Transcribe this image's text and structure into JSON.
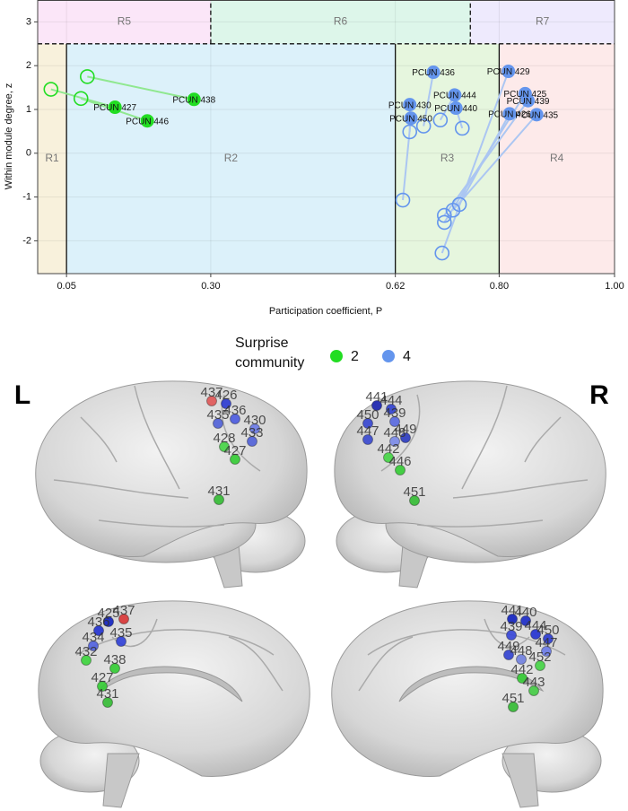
{
  "chart_data": {
    "type": "scatter",
    "xlabel": "Participation coefficient, P",
    "ylabel": "Within module degree, z",
    "xlim": [
      0,
      1
    ],
    "ylim": [
      -2.75,
      3.5
    ],
    "xticks": [
      0.05,
      {
        "value": 0.3,
        "label": "0.30"
      },
      0.62,
      {
        "value": 0.8,
        "label": "0.80"
      },
      {
        "value": 1,
        "label": "1.00"
      }
    ],
    "yticks": [
      -2,
      -1,
      0,
      1,
      2,
      3
    ],
    "grid": true,
    "regions": [
      {
        "label": "R1",
        "x": [
          0,
          0.05
        ],
        "y": [
          -2.75,
          2.5
        ],
        "color": "#f8f1dc"
      },
      {
        "label": "R2",
        "x": [
          0.05,
          0.62
        ],
        "y": [
          -2.75,
          2.5
        ],
        "color": "#dcf1fa"
      },
      {
        "label": "R3",
        "x": [
          0.62,
          0.8
        ],
        "y": [
          -2.75,
          2.5
        ],
        "color": "#e6f6de"
      },
      {
        "label": "R4",
        "x": [
          0.8,
          1
        ],
        "y": [
          -2.75,
          2.5
        ],
        "color": "#fdeaea"
      },
      {
        "label": "R5",
        "x": [
          0,
          0.3
        ],
        "y": [
          2.5,
          3.5
        ],
        "color": "#fbe6f8"
      },
      {
        "label": "R6",
        "x": [
          0.3,
          0.75
        ],
        "y": [
          2.5,
          3.5
        ],
        "color": "#ddf6ea"
      },
      {
        "label": "R7",
        "x": [
          0.75,
          1
        ],
        "y": [
          2.5,
          3.5
        ],
        "color": "#eeeafd"
      }
    ],
    "legend_title": "Surprise community",
    "series": [
      {
        "name": "2",
        "color": "#22dd22",
        "line_color": "#90e890",
        "labels": [
          "PCUN 438",
          "PCUN 427",
          "PCUN 446"
        ],
        "x": [
          0.271,
          0.134,
          0.19
        ],
        "values": [
          1.23,
          1.05,
          0.74
        ],
        "alt_x": [
          0.086,
          0.023,
          0.075
        ],
        "alt_values": [
          1.75,
          1.46,
          1.25
        ]
      },
      {
        "name": "4",
        "color": "#6495ed",
        "line_color": "#abc6f2",
        "labels": [
          "PCUN 436",
          "PCUN 429",
          "PCUN 444",
          "PCUN 425",
          "PCUN 430",
          "PCUN 440",
          "PCUN 439",
          "PCUN 450",
          "PCUN 426",
          "PCUN 435"
        ],
        "x": [
          0.686,
          0.816,
          0.723,
          0.845,
          0.645,
          0.725,
          0.85,
          0.647,
          0.818,
          0.865
        ],
        "values": [
          1.85,
          1.87,
          1.33,
          1.36,
          1.11,
          1.03,
          1.2,
          0.8,
          0.9,
          0.88
        ],
        "alt_x": [
          0.669,
          0.701,
          0.698,
          0.705,
          0.645,
          0.736,
          0.705,
          0.633,
          0.731,
          0.72
        ],
        "alt_values": [
          0.62,
          -2.28,
          0.76,
          -1.58,
          0.49,
          0.57,
          -1.42,
          -1.07,
          -1.17,
          -1.3
        ]
      }
    ]
  },
  "brain_views": [
    {
      "label": "L",
      "nodes": [
        {
          "id": "437",
          "color": "#e05555"
        },
        {
          "id": "426",
          "color": "#2a3ad0"
        },
        {
          "id": "436",
          "color": "#4a5ae0"
        },
        {
          "id": "430",
          "color": "#6a7ae8"
        },
        {
          "id": "435",
          "color": "#5060d8"
        },
        {
          "id": "433",
          "color": "#5060d8"
        },
        {
          "id": "428",
          "color": "#44d444"
        },
        {
          "id": "427",
          "color": "#33cc33"
        },
        {
          "id": "431",
          "color": "#33bb33"
        }
      ]
    },
    {
      "label": "R",
      "nodes": [
        {
          "id": "441",
          "color": "#1a22b0"
        },
        {
          "id": "444",
          "color": "#3040d0"
        },
        {
          "id": "450",
          "color": "#3545d0"
        },
        {
          "id": "439",
          "color": "#5868e0"
        },
        {
          "id": "447",
          "color": "#3848d0"
        },
        {
          "id": "449",
          "color": "#2a3ac0"
        },
        {
          "id": "448",
          "color": "#7a8ae8"
        },
        {
          "id": "442",
          "color": "#44d444"
        },
        {
          "id": "446",
          "color": "#33cc33"
        },
        {
          "id": "451",
          "color": "#33bb33"
        }
      ]
    },
    {
      "nodes": [
        {
          "id": "437",
          "color": "#d83333"
        },
        {
          "id": "425",
          "color": "#1020c0"
        },
        {
          "id": "436",
          "color": "#2030d0"
        },
        {
          "id": "435",
          "color": "#3040d8"
        },
        {
          "id": "434",
          "color": "#5060e0"
        },
        {
          "id": "432",
          "color": "#3bd43b"
        },
        {
          "id": "438",
          "color": "#33cc33"
        },
        {
          "id": "427",
          "color": "#33cc33"
        },
        {
          "id": "431",
          "color": "#33bb33"
        }
      ]
    },
    {
      "nodes": [
        {
          "id": "441",
          "color": "#1020c0"
        },
        {
          "id": "440",
          "color": "#1a2ac8"
        },
        {
          "id": "444",
          "color": "#2030d0"
        },
        {
          "id": "450",
          "color": "#2a3ad0"
        },
        {
          "id": "439",
          "color": "#3545d8"
        },
        {
          "id": "447",
          "color": "#6a7ae8"
        },
        {
          "id": "449",
          "color": "#3040d0"
        },
        {
          "id": "448",
          "color": "#7080e0"
        },
        {
          "id": "452",
          "color": "#44d444"
        },
        {
          "id": "442",
          "color": "#33cc33"
        },
        {
          "id": "443",
          "color": "#44cc44"
        },
        {
          "id": "451",
          "color": "#33bb33"
        }
      ]
    }
  ]
}
